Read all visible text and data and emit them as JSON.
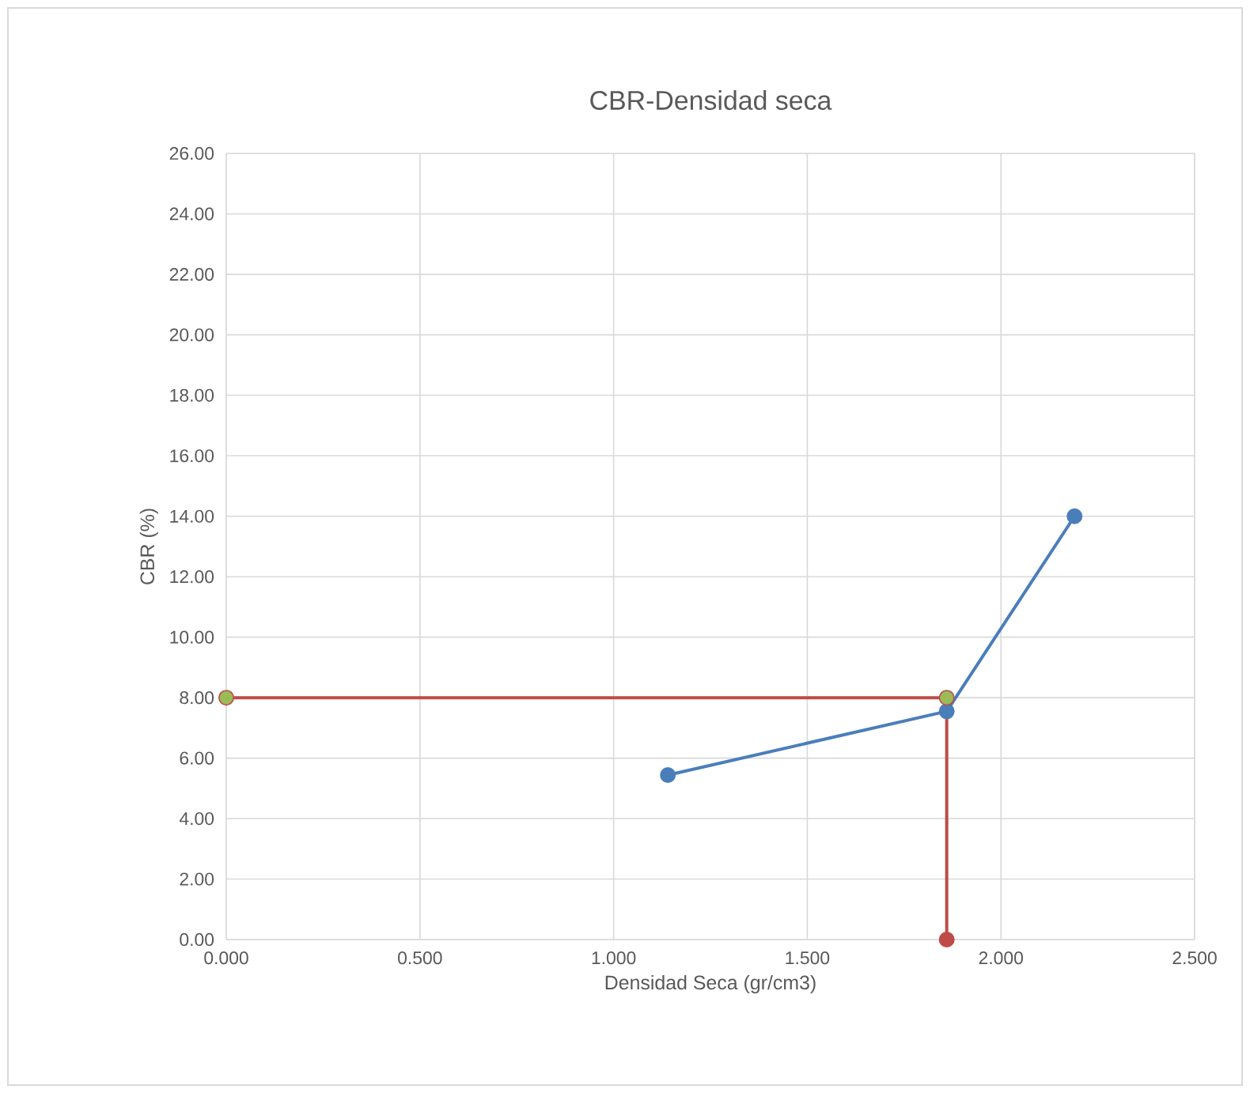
{
  "chart_data": {
    "type": "line",
    "title": "CBR-Densidad seca",
    "xlabel": "Densidad Seca (gr/cm3)",
    "ylabel": "CBR (%)",
    "series": [
      {
        "color": "#4a7ebb",
        "x": [
          1.14,
          1.86,
          2.19
        ],
        "values": [
          5.44,
          7.55,
          14.0
        ]
      },
      {
        "color": "#be4b48",
        "x": [
          0,
          1.86,
          1.86
        ],
        "values": [
          8.0,
          8.0,
          0
        ]
      },
      {
        "type": "scatter",
        "color": "#9bbb59",
        "x": [
          0,
          1.86
        ],
        "values": [
          8.0,
          8.0
        ]
      }
    ],
    "xlim": [
      0,
      2.5
    ],
    "ylim": [
      0,
      26
    ],
    "xticks": [
      {
        "value": 0,
        "label": "0.000"
      },
      {
        "value": 0.5,
        "label": "0.500"
      },
      {
        "value": 1,
        "label": "1.000"
      },
      {
        "value": 1.5,
        "label": "1.500"
      },
      {
        "value": 2,
        "label": "2.000"
      },
      {
        "value": 2.5,
        "label": "2.500"
      }
    ],
    "yticks": [
      {
        "value": 0,
        "label": "0.00"
      },
      {
        "value": 2,
        "label": "2.00"
      },
      {
        "value": 4,
        "label": "4.00"
      },
      {
        "value": 6,
        "label": "6.00"
      },
      {
        "value": 8,
        "label": "8.00"
      },
      {
        "value": 10,
        "label": "10.00"
      },
      {
        "value": 12,
        "label": "12.00"
      },
      {
        "value": 14,
        "label": "14.00"
      },
      {
        "value": 16,
        "label": "16.00"
      },
      {
        "value": 18,
        "label": "18.00"
      },
      {
        "value": 20,
        "label": "20.00"
      },
      {
        "value": 22,
        "label": "22.00"
      },
      {
        "value": 24,
        "label": "24.00"
      },
      {
        "value": 26,
        "label": "26.00"
      }
    ],
    "grid": true,
    "marker": "circle",
    "line_style": "solid"
  }
}
